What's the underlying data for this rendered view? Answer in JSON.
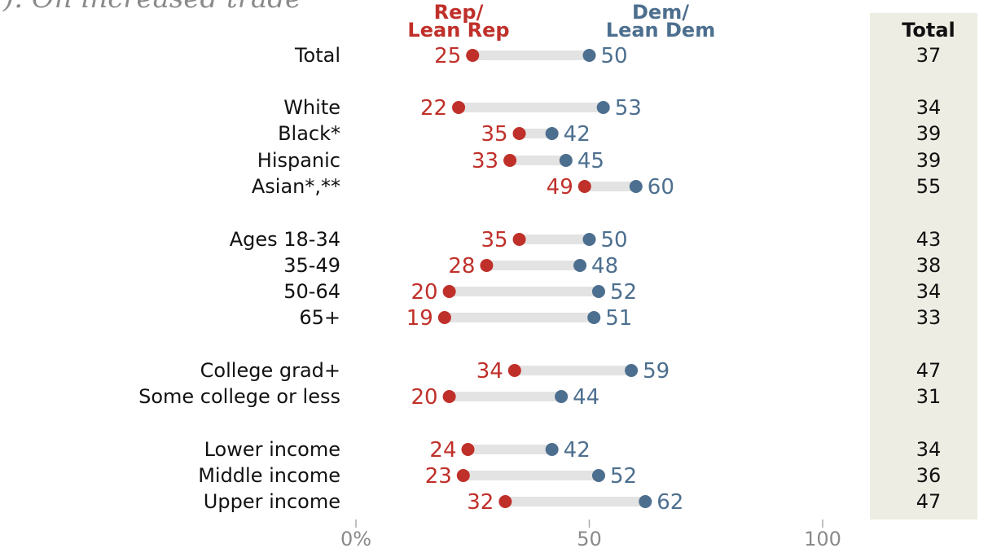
{
  "title_fragment": "). On increased trade",
  "legend": {
    "rep_line1": "Rep/",
    "rep_line2": "Lean Rep",
    "dem_line1": "Dem/",
    "dem_line2": "Lean Dem",
    "total": "Total"
  },
  "colors": {
    "rep": "#c0302a",
    "dem": "#4d6f8f",
    "connector": "#e3e3e3",
    "total_bg": "#eeede3",
    "axis": "#aaaaaa"
  },
  "chart_data": {
    "type": "dot",
    "x_ticks": [
      {
        "value": 0,
        "label": "0%"
      },
      {
        "value": 50,
        "label": "50"
      },
      {
        "value": 100,
        "label": "100"
      }
    ],
    "xlim": [
      0,
      100
    ],
    "series": [
      {
        "name": "Rep/ Lean Rep",
        "key": "rep"
      },
      {
        "name": "Dem/ Lean Dem",
        "key": "dem"
      }
    ],
    "rows": [
      {
        "label": "Total",
        "rep": 25,
        "dem": 50,
        "total": 37,
        "group": 0
      },
      {
        "label": "White",
        "rep": 22,
        "dem": 53,
        "total": 34,
        "group": 1
      },
      {
        "label": "Black*",
        "rep": 35,
        "dem": 42,
        "total": 39,
        "group": 1
      },
      {
        "label": "Hispanic",
        "rep": 33,
        "dem": 45,
        "total": 39,
        "group": 1
      },
      {
        "label": "Asian*,**",
        "rep": 49,
        "dem": 60,
        "total": 55,
        "group": 1
      },
      {
        "label": "Ages 18-34",
        "rep": 35,
        "dem": 50,
        "total": 43,
        "group": 2
      },
      {
        "label": "35-49",
        "rep": 28,
        "dem": 48,
        "total": 38,
        "group": 2
      },
      {
        "label": "50-64",
        "rep": 20,
        "dem": 52,
        "total": 34,
        "group": 2
      },
      {
        "label": "65+",
        "rep": 19,
        "dem": 51,
        "total": 33,
        "group": 2
      },
      {
        "label": "College grad+",
        "rep": 34,
        "dem": 59,
        "total": 47,
        "group": 3
      },
      {
        "label": "Some college or less",
        "rep": 20,
        "dem": 44,
        "total": 31,
        "group": 3
      },
      {
        "label": "Lower income",
        "rep": 24,
        "dem": 42,
        "total": 34,
        "group": 4
      },
      {
        "label": "Middle income",
        "rep": 23,
        "dem": 52,
        "total": 36,
        "group": 4
      },
      {
        "label": "Upper income",
        "rep": 32,
        "dem": 62,
        "total": 47,
        "group": 4
      }
    ]
  }
}
